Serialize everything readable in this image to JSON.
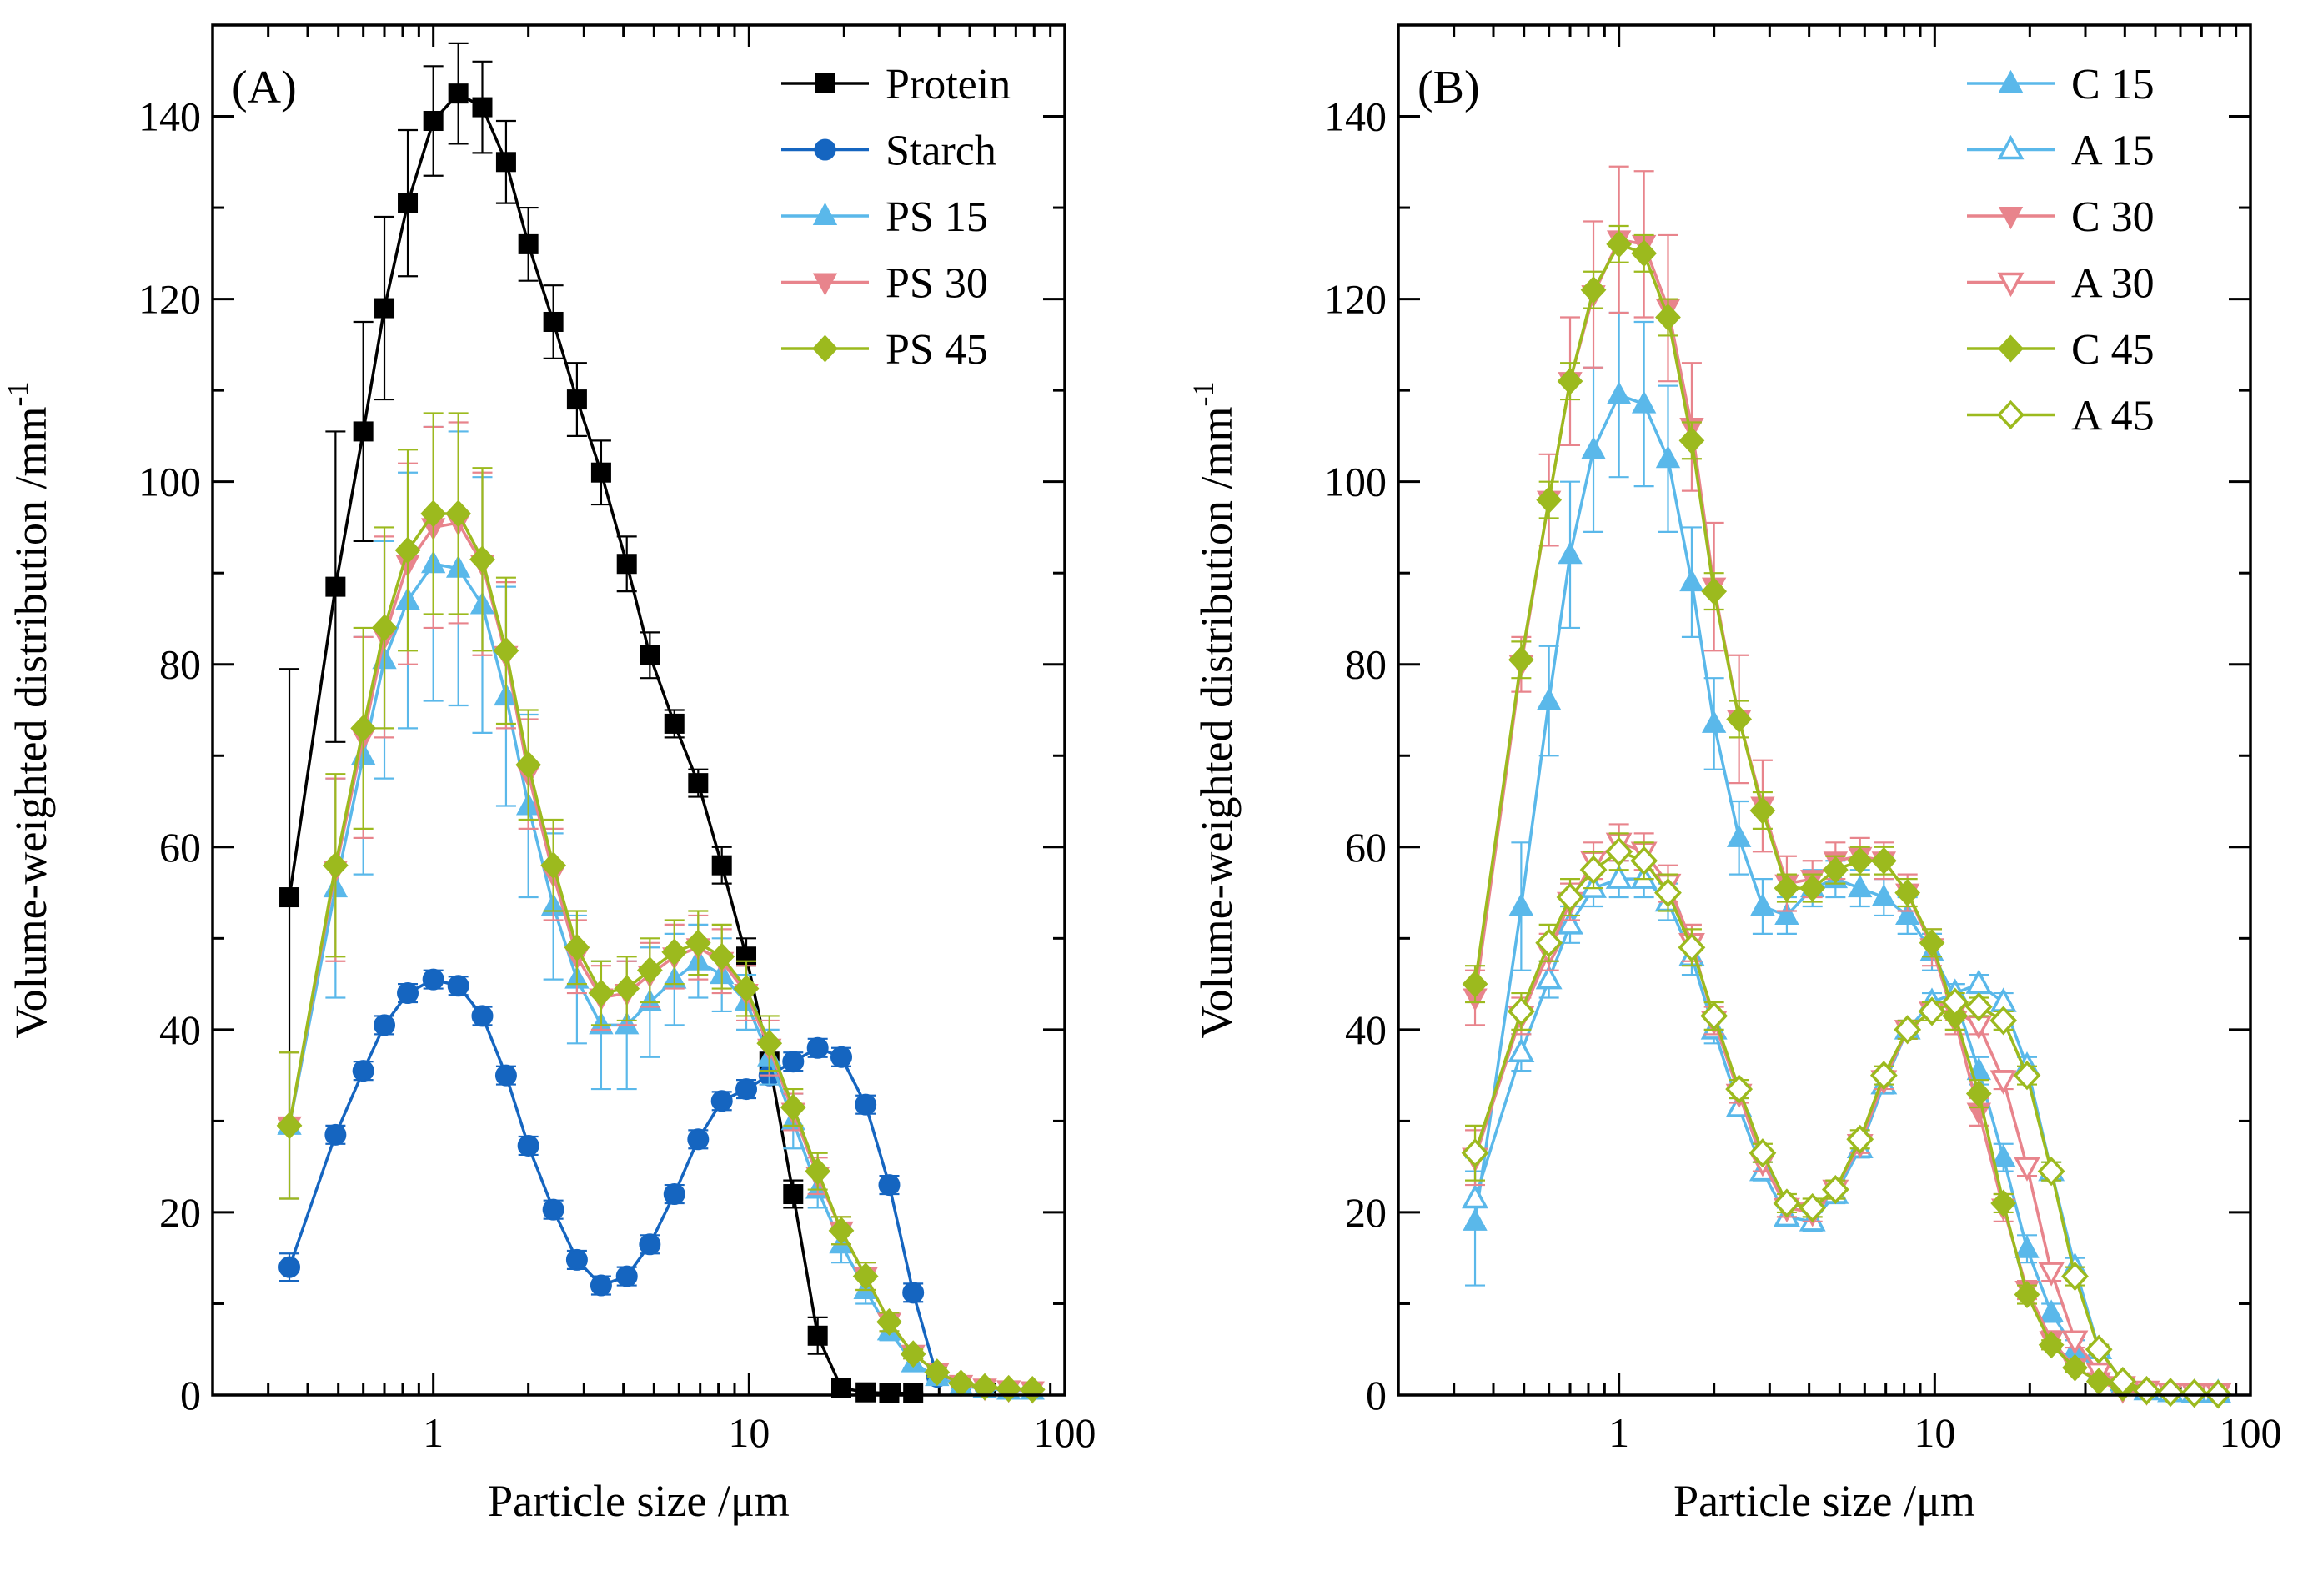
{
  "chart_data": [
    {
      "panel": "(A)",
      "type": "line",
      "xscale": "log",
      "xlim": [
        0.2,
        100
      ],
      "ylim": [
        0,
        150
      ],
      "xticks": [
        1,
        10,
        100
      ],
      "xtick_labels": [
        "1",
        "10",
        "100"
      ],
      "yticks": [
        0,
        20,
        40,
        60,
        80,
        100,
        120,
        140
      ],
      "ytick_labels": [
        "0",
        "20",
        "40",
        "60",
        "80",
        "100",
        "120",
        "140"
      ],
      "xlabel": "Particle size /μm",
      "ylabel": "Volume-weighted distribution /mm",
      "ylabel_sup": "-1",
      "legend_position": "top-right",
      "x": [
        0.35,
        0.49,
        0.6,
        0.7,
        0.83,
        1.0,
        1.2,
        1.43,
        1.7,
        2.0,
        2.4,
        2.85,
        3.4,
        4.1,
        4.85,
        5.8,
        6.9,
        8.2,
        9.8,
        11.6,
        13.8,
        16.5,
        19.6,
        23.4,
        27.8,
        33.1,
        39.4,
        46.9,
        55.8,
        66.4,
        79.0
      ],
      "series": [
        {
          "name": "Protein",
          "color": "#000000",
          "marker": "square",
          "filled": true,
          "values": [
            54.5,
            88.5,
            105.5,
            119,
            130.5,
            139.5,
            142.5,
            141,
            135,
            126,
            117.5,
            109,
            101,
            91,
            81,
            73.5,
            67,
            58,
            48,
            36.5,
            22,
            6.5,
            0.8,
            0.3,
            0.2,
            0.2,
            null,
            null,
            null,
            null,
            null
          ],
          "errors": [
            25,
            17,
            12,
            10,
            8,
            6,
            5.5,
            5,
            4.5,
            4,
            4,
            4,
            3.5,
            3,
            2.5,
            1.5,
            1.5,
            2,
            2,
            2,
            1.5,
            2,
            0.5,
            0.2,
            0.1,
            0.1,
            null,
            null,
            null,
            null,
            null
          ]
        },
        {
          "name": "Starch",
          "color": "#1565c0",
          "marker": "circle",
          "filled": true,
          "values": [
            14,
            28.5,
            35.5,
            40.5,
            44,
            45.5,
            44.8,
            41.5,
            35,
            27.3,
            20.3,
            14.8,
            12,
            13,
            16.5,
            22,
            28,
            32.2,
            33.5,
            35,
            36.5,
            38,
            37,
            31.8,
            23,
            11.2,
            2,
            null,
            null,
            null,
            null
          ],
          "errors": [
            1.5,
            1,
            1,
            1,
            1,
            1,
            1,
            1,
            1,
            1,
            1,
            1,
            1,
            1,
            1,
            1,
            1,
            1,
            1,
            1,
            1,
            1,
            1,
            1,
            1,
            1,
            0.5,
            null,
            null,
            null,
            null
          ]
        },
        {
          "name": "PS 15",
          "color": "#5ab8ea",
          "marker": "triangle-up",
          "filled": true,
          "values": [
            29.5,
            55.5,
            70,
            80.5,
            87,
            91,
            90.5,
            86.5,
            76.5,
            64.5,
            53.5,
            45.5,
            40.5,
            40.5,
            43,
            45.5,
            47.5,
            46,
            43,
            37,
            30,
            22.5,
            16.5,
            11.5,
            7,
            3.5,
            2,
            1,
            0.7,
            0.5,
            0.5
          ],
          "errors": [
            8,
            12,
            13,
            13,
            14,
            15,
            15,
            14,
            12,
            10,
            8,
            7,
            7,
            7,
            6,
            5,
            4,
            4,
            3,
            3,
            3,
            2,
            2,
            1.5,
            1,
            0.5,
            0.5,
            0.3,
            0.2,
            0.2,
            0.2
          ]
        },
        {
          "name": "PS 30",
          "color": "#e8848c",
          "marker": "triangle-down",
          "filled": true,
          "values": [
            29.5,
            57.5,
            72,
            83,
            91,
            95,
            95.5,
            91,
            81,
            68,
            57,
            48,
            43.5,
            44,
            46,
            48,
            49,
            47.5,
            44,
            38,
            31,
            24,
            18,
            13,
            8,
            4.5,
            2.5,
            1.2,
            0.8,
            0.6,
            0.5
          ],
          "errors": [
            8,
            10,
            11,
            11,
            11,
            11,
            11,
            10,
            8,
            6,
            5,
            4,
            3.5,
            3.5,
            3.5,
            3.5,
            3.5,
            3.5,
            3,
            3,
            2,
            2,
            1.5,
            1.5,
            1,
            0.5,
            0.5,
            0.3,
            0.2,
            0.2,
            0.2
          ]
        },
        {
          "name": "PS 45",
          "color": "#9cba1e",
          "marker": "diamond",
          "filled": true,
          "values": [
            29.5,
            58,
            73,
            84,
            92.5,
            96.5,
            96.5,
            91.5,
            81.5,
            69,
            58,
            49,
            44,
            44.5,
            46.5,
            48.5,
            49.5,
            48,
            44.5,
            38.5,
            31.5,
            24.5,
            18,
            13,
            8,
            4.5,
            2.5,
            1.3,
            0.9,
            0.7,
            0.6
          ],
          "errors": [
            8,
            10,
            11,
            11,
            11,
            11,
            11,
            10,
            8,
            6,
            5,
            4,
            3.5,
            3.5,
            3.5,
            3.5,
            3.5,
            3.5,
            3,
            3,
            2,
            2,
            1.5,
            1.5,
            1,
            0.5,
            0.5,
            0.3,
            0.2,
            0.2,
            0.2
          ]
        }
      ]
    },
    {
      "panel": "(B)",
      "type": "line",
      "xscale": "log",
      "xlim": [
        0.2,
        100
      ],
      "ylim": [
        0,
        150
      ],
      "xticks": [
        1,
        10,
        100
      ],
      "xtick_labels": [
        "1",
        "10",
        "100"
      ],
      "yticks": [
        0,
        20,
        40,
        60,
        80,
        100,
        120,
        140
      ],
      "ytick_labels": [
        "0",
        "20",
        "40",
        "60",
        "80",
        "100",
        "120",
        "140"
      ],
      "xlabel": "Particle size /μm",
      "ylabel": "Volume-weighted distribution /mm",
      "ylabel_sup": "-1",
      "legend_position": "top-right",
      "x": [
        0.35,
        0.49,
        0.6,
        0.7,
        0.83,
        1.0,
        1.2,
        1.43,
        1.7,
        2.0,
        2.4,
        2.85,
        3.4,
        4.1,
        4.85,
        5.8,
        6.9,
        8.2,
        9.8,
        11.6,
        13.8,
        16.5,
        19.6,
        23.4,
        27.8,
        33.1,
        39.4,
        46.9,
        55.8,
        66.4,
        79.0
      ],
      "series": [
        {
          "name": "C 15",
          "color": "#5ab8ea",
          "marker": "triangle-up",
          "filled": true,
          "values": [
            19,
            53.5,
            76,
            92,
            103.5,
            109.5,
            108.5,
            102.5,
            89,
            73.5,
            61,
            53.5,
            52.5,
            55.5,
            56.5,
            55.5,
            54.5,
            52.5,
            48.5,
            43.5,
            35.5,
            26,
            16,
            9,
            5,
            2.5,
            1.2,
            0.6,
            0.4,
            0.2,
            0.2
          ],
          "errors": [
            7,
            7,
            6,
            8,
            9,
            9,
            9,
            8,
            6,
            5,
            4,
            3,
            2,
            2,
            2,
            2,
            2,
            2,
            2,
            1.5,
            1.5,
            1.5,
            1.5,
            1,
            1,
            0.5,
            0.3,
            0.2,
            0.2,
            0.1,
            0.1
          ]
        },
        {
          "name": "A 15",
          "color": "#5ab8ea",
          "marker": "triangle-up",
          "filled": false,
          "values": [
            21.5,
            37.5,
            45.5,
            51.5,
            55.5,
            56.5,
            56.5,
            54,
            48,
            40,
            31.5,
            24.5,
            19.5,
            19,
            22,
            27,
            34,
            40,
            43,
            44,
            45,
            43,
            36,
            24.5,
            14,
            5,
            1.5,
            0.5,
            0.3,
            0.2,
            0.2
          ],
          "errors": [
            3,
            2,
            2,
            2,
            2,
            2,
            2,
            2,
            2,
            1.5,
            1,
            1,
            1,
            1,
            1,
            1,
            1,
            1,
            1,
            1,
            1,
            1,
            1,
            1,
            1,
            0.5,
            0.3,
            0.2,
            0.2,
            0.1,
            0.1
          ]
        },
        {
          "name": "C 30",
          "color": "#e8848c",
          "marker": "triangle-down",
          "filled": true,
          "values": [
            43.5,
            80,
            98,
            111,
            120.5,
            126.5,
            126,
            119,
            106,
            88.5,
            74,
            64.5,
            56,
            56.5,
            58.5,
            59,
            58.5,
            55,
            49,
            41,
            31,
            20.5,
            11.5,
            6,
            3,
            1.5,
            0.5,
            0.3,
            0.2,
            0.1,
            0.1
          ],
          "errors": [
            3,
            3,
            5,
            7,
            8,
            8,
            8,
            8,
            7,
            7,
            7,
            5,
            3,
            2,
            2,
            2,
            2,
            2,
            2,
            1.5,
            1.5,
            1.5,
            1,
            1,
            0.5,
            0.3,
            0.2,
            0.1,
            0.1,
            0.1,
            0.1
          ]
        },
        {
          "name": "A 30",
          "color": "#e8848c",
          "marker": "triangle-down",
          "filled": false,
          "values": [
            26,
            41.5,
            48.5,
            54,
            58.5,
            60.5,
            59.5,
            56,
            49.5,
            41,
            33,
            25.5,
            20.5,
            20,
            22.5,
            27.5,
            34.5,
            40,
            42,
            42,
            40.5,
            34.5,
            25,
            13.5,
            6,
            2.5,
            1,
            0.5,
            0.3,
            0.2,
            0.2
          ],
          "errors": [
            3,
            2,
            2,
            2,
            2,
            2,
            2,
            2,
            2,
            1.5,
            1,
            1,
            1,
            1,
            1,
            1,
            1,
            1,
            1,
            1,
            1,
            1,
            1,
            1,
            0.8,
            0.5,
            0.3,
            0.2,
            0.2,
            0.1,
            0.1
          ]
        },
        {
          "name": "C 45",
          "color": "#9cba1e",
          "marker": "diamond",
          "filled": true,
          "values": [
            45,
            80.5,
            98,
            111,
            121,
            126,
            125,
            118,
            104.5,
            88,
            74,
            64,
            55.5,
            55.5,
            57.5,
            58.5,
            58.5,
            55,
            49.5,
            41.5,
            33,
            21,
            11,
            5.5,
            3,
            1.5,
            0.8,
            0.5,
            0.3,
            0.2,
            0.1
          ],
          "errors": [
            2,
            2,
            2,
            2,
            2,
            2,
            2,
            2,
            2,
            2,
            2,
            2,
            1.5,
            1.5,
            1.5,
            1.5,
            1.5,
            1.5,
            1.5,
            1.5,
            1.5,
            1,
            1,
            0.5,
            0.5,
            0.3,
            0.2,
            0.2,
            0.1,
            0.1,
            0.1
          ]
        },
        {
          "name": "A 45",
          "color": "#9cba1e",
          "marker": "diamond",
          "filled": false,
          "values": [
            26.5,
            42,
            49.5,
            54.5,
            57.5,
            59.5,
            58.5,
            55,
            49,
            41.5,
            33.5,
            26.5,
            21,
            20.5,
            22.5,
            28,
            35,
            40,
            42,
            43,
            42.5,
            41,
            35,
            24.5,
            13,
            5,
            1.5,
            0.5,
            0.3,
            0.2,
            0.1
          ],
          "errors": [
            3,
            2,
            2,
            2,
            2,
            2,
            2,
            2,
            2,
            1.5,
            1,
            1,
            1,
            1,
            1,
            1,
            1,
            1,
            1,
            1,
            1,
            1,
            1,
            1,
            1,
            0.5,
            0.3,
            0.2,
            0.2,
            0.1,
            0.1
          ]
        }
      ]
    }
  ]
}
